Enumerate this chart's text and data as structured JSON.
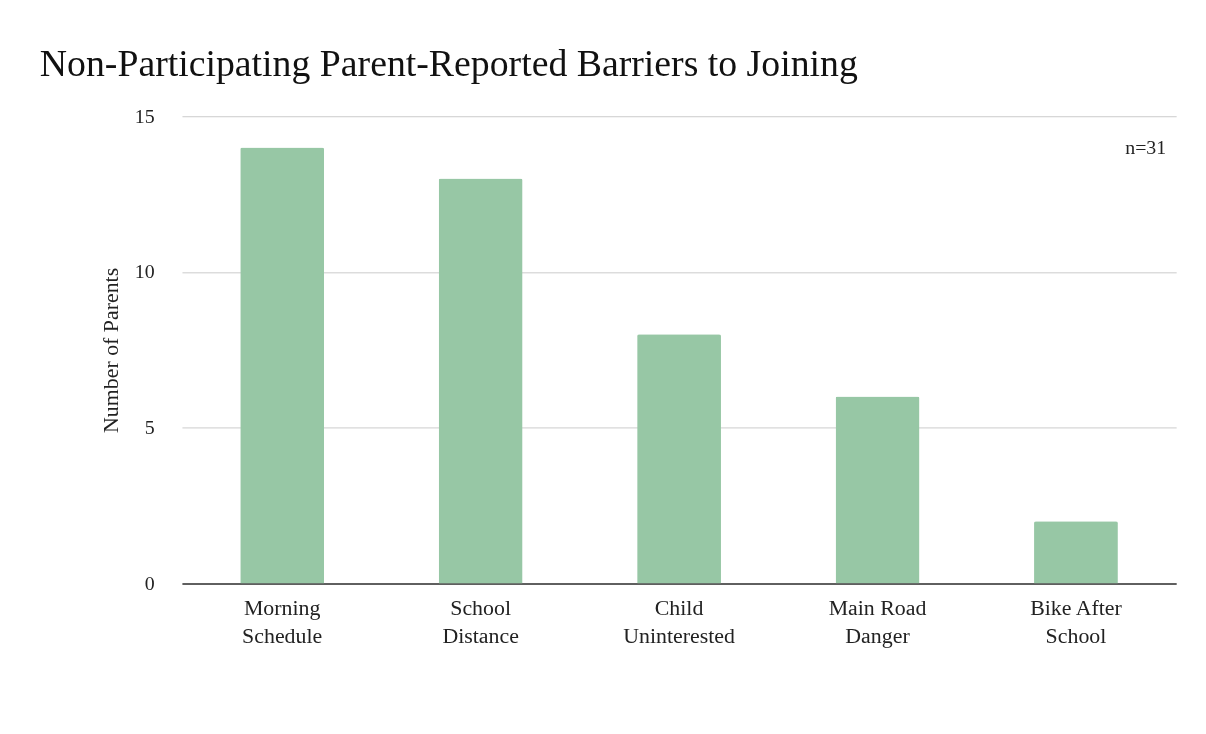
{
  "chart_data": {
    "type": "bar",
    "title": "Non-Participating Parent-Reported Barriers to Joining",
    "ylabel": "Number of Parents",
    "categories": [
      "Morning Schedule",
      "School Distance",
      "Child Uninterested",
      "Main Road Danger",
      "Bike After School"
    ],
    "values": [
      14,
      13,
      8,
      6,
      2
    ],
    "color": "#97c7a5",
    "ylim": [
      0,
      15
    ],
    "yticks": [
      0,
      5,
      10,
      15
    ],
    "grid": "y",
    "annotations": [
      "n=31"
    ]
  }
}
